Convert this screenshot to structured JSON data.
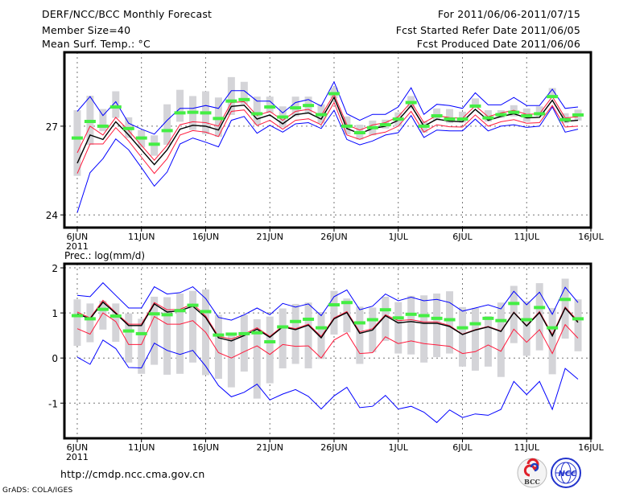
{
  "header": {
    "title": "DERF/NCC/BCC Monthly Forecast",
    "member_size": "Member Size=40",
    "variable": "Mean Surf. Temp.: °C",
    "period": "For 2011/06/06-2011/07/15",
    "start_date": "Fcst Started Refer Date 2011/06/05",
    "produced_date": "Fcst Produced Date 2011/06/06"
  },
  "footer": {
    "url": "http://cmdp.ncc.cma.gov.cn",
    "credit": "GrADS: COLA/IGES",
    "logo_left": "BCC",
    "logo_right": "NCC"
  },
  "colors": {
    "mean": "#000000",
    "spread": "#ff1a3c",
    "extreme": "#0000ff",
    "marker": "#44ee44",
    "box": "#d4d4d8",
    "grid": "#777777"
  },
  "chart_data": [
    {
      "type": "line",
      "title": "Mean Surf. Temp.: °C",
      "ylabel": "°C",
      "ylim": [
        23.57,
        29.5
      ],
      "xlim": [
        -1,
        40
      ],
      "yticks": [
        24,
        27
      ],
      "ytick_labels": [
        "24",
        "27"
      ],
      "xticks": [
        0,
        5,
        10,
        15,
        20,
        25,
        30,
        35,
        40
      ],
      "xtick_labels": [
        "6JUN",
        "11JUN",
        "16JUN",
        "21JUN",
        "26JUN",
        "1JUL",
        "6JUL",
        "11JUL",
        "16JUL"
      ],
      "xyear_label": "2011",
      "grid": true,
      "x": [
        0,
        1,
        2,
        3,
        4,
        5,
        6,
        7,
        8,
        9,
        10,
        11,
        12,
        13,
        14,
        15,
        16,
        17,
        18,
        19,
        20,
        21,
        22,
        23,
        24,
        25,
        26,
        27,
        28,
        29,
        30,
        31,
        32,
        33,
        34,
        35,
        36,
        37,
        38,
        39
      ],
      "box_high": [
        27.54,
        28.03,
        27.58,
        28.18,
        27.3,
        26.87,
        26.69,
        27.74,
        28.23,
        28.02,
        28.18,
        27.97,
        28.66,
        28.5,
        28.0,
        28.0,
        27.67,
        28.0,
        28.0,
        27.74,
        28.31,
        27.33,
        27.05,
        27.19,
        27.22,
        27.47,
        28.02,
        27.17,
        27.6,
        27.58,
        27.49,
        27.94,
        27.54,
        27.54,
        27.71,
        27.6,
        27.67,
        28.29,
        27.44,
        27.56
      ],
      "box_low": [
        25.32,
        26.37,
        26.83,
        27.28,
        26.6,
        26.28,
        26.0,
        26.37,
        27.15,
        26.87,
        26.73,
        26.64,
        27.38,
        27.74,
        27.05,
        27.44,
        26.96,
        27.33,
        27.42,
        27.1,
        27.95,
        26.72,
        26.55,
        26.69,
        26.92,
        26.99,
        27.6,
        26.78,
        27.19,
        27.1,
        27.12,
        27.62,
        27.15,
        27.28,
        27.33,
        27.15,
        27.33,
        27.97,
        27.1,
        27.19
      ],
      "series": [
        {
          "name": "max",
          "color": "#0000ff",
          "values": [
            27.5,
            28.0,
            27.36,
            27.83,
            27.1,
            26.9,
            26.73,
            27.2,
            27.6,
            27.6,
            27.7,
            27.6,
            28.2,
            28.2,
            27.85,
            27.85,
            27.45,
            27.8,
            27.9,
            27.68,
            28.5,
            27.42,
            27.2,
            27.4,
            27.4,
            27.65,
            28.3,
            27.4,
            27.74,
            27.7,
            27.6,
            28.13,
            27.72,
            27.72,
            27.97,
            27.7,
            27.7,
            28.25,
            27.6,
            27.65
          ]
        },
        {
          "name": "min",
          "color": "#0000ff",
          "values": [
            24.08,
            25.43,
            25.9,
            26.57,
            26.2,
            25.6,
            24.97,
            25.45,
            26.4,
            26.6,
            26.46,
            26.3,
            27.2,
            27.33,
            26.76,
            27.03,
            26.8,
            27.08,
            27.12,
            26.92,
            27.54,
            26.55,
            26.37,
            26.5,
            26.7,
            26.78,
            27.36,
            26.62,
            26.87,
            26.84,
            26.84,
            27.24,
            26.84,
            27.0,
            27.05,
            26.96,
            27.0,
            27.65,
            26.8,
            26.9
          ]
        },
        {
          "name": "upper",
          "color": "#ff1a3c",
          "values": [
            26.1,
            27.0,
            26.7,
            27.3,
            26.85,
            26.35,
            25.85,
            26.35,
            27.05,
            27.15,
            27.12,
            27.0,
            27.8,
            27.83,
            27.36,
            27.5,
            27.2,
            27.5,
            27.57,
            27.36,
            28.08,
            27.05,
            26.87,
            27.04,
            27.12,
            27.32,
            27.82,
            27.12,
            27.36,
            27.29,
            27.27,
            27.69,
            27.32,
            27.45,
            27.54,
            27.4,
            27.42,
            28.0,
            27.28,
            27.32
          ]
        },
        {
          "name": "lower",
          "color": "#ff1a3c",
          "values": [
            25.4,
            26.4,
            26.4,
            26.95,
            26.5,
            25.95,
            25.4,
            25.9,
            26.7,
            26.85,
            26.8,
            26.65,
            27.5,
            27.55,
            27.02,
            27.2,
            26.9,
            27.2,
            27.25,
            27.05,
            27.8,
            26.7,
            26.55,
            26.72,
            26.8,
            27.0,
            27.5,
            26.8,
            27.05,
            26.98,
            26.97,
            27.38,
            27.0,
            27.15,
            27.22,
            27.1,
            27.12,
            27.7,
            26.97,
            27.0
          ]
        },
        {
          "name": "mean",
          "color": "#000000",
          "values": [
            25.75,
            26.7,
            26.55,
            27.15,
            26.7,
            26.2,
            25.7,
            26.2,
            26.9,
            27.03,
            27.0,
            26.87,
            27.67,
            27.71,
            27.24,
            27.38,
            27.08,
            27.39,
            27.45,
            27.24,
            27.97,
            26.92,
            26.75,
            26.92,
            27.0,
            27.2,
            27.7,
            27.0,
            27.24,
            27.17,
            27.15,
            27.57,
            27.2,
            27.33,
            27.42,
            27.28,
            27.3,
            27.88,
            27.16,
            27.2
          ]
        }
      ],
      "markers": [
        26.6,
        27.16,
        27.0,
        27.65,
        26.92,
        26.6,
        26.39,
        26.85,
        27.45,
        27.47,
        27.45,
        27.26,
        27.85,
        27.9,
        27.42,
        27.65,
        27.31,
        27.62,
        27.7,
        27.39,
        28.1,
        27.0,
        26.78,
        26.95,
        27.05,
        27.24,
        27.8,
        27.0,
        27.35,
        27.24,
        27.24,
        27.68,
        27.28,
        27.39,
        27.47,
        27.35,
        27.42,
        28.0,
        27.22,
        27.38
      ]
    },
    {
      "type": "line",
      "title": "Prec.: log(mm/d)",
      "ylabel": "log(mm/d)",
      "ylim": [
        -1.78,
        2.09
      ],
      "xlim": [
        -1,
        40
      ],
      "yticks": [
        -1,
        0,
        1,
        2
      ],
      "ytick_labels": [
        "-1",
        "0",
        "1",
        "2"
      ],
      "xticks": [
        0,
        5,
        10,
        15,
        20,
        25,
        30,
        35,
        40
      ],
      "xtick_labels": [
        "6JUN",
        "11JUN",
        "16JUN",
        "21JUN",
        "26JUN",
        "1JUL",
        "6JUL",
        "11JUL",
        "16JUL"
      ],
      "xyear_label": "2011",
      "grid": true,
      "x": [
        0,
        1,
        2,
        3,
        4,
        5,
        6,
        7,
        8,
        9,
        10,
        11,
        12,
        13,
        14,
        15,
        16,
        17,
        18,
        19,
        20,
        21,
        22,
        23,
        24,
        25,
        26,
        27,
        28,
        29,
        30,
        31,
        32,
        33,
        34,
        35,
        36,
        37,
        38,
        39
      ],
      "box_high": [
        1.3,
        1.21,
        1.27,
        1.21,
        0.99,
        0.87,
        1.36,
        1.35,
        1.43,
        1.49,
        1.52,
        0.96,
        0.51,
        0.96,
        0.86,
        0.92,
        1.1,
        1.2,
        1.23,
        1.02,
        1.49,
        1.32,
        1.14,
        1.12,
        1.36,
        1.24,
        1.38,
        1.39,
        1.43,
        1.48,
        1.13,
        1.11,
        0.93,
        1.23,
        1.6,
        1.26,
        1.66,
        1.11,
        1.76,
        1.3
      ],
      "box_low": [
        0.27,
        0.35,
        0.63,
        0.36,
        -0.1,
        -0.35,
        -0.15,
        -0.37,
        -0.35,
        -0.1,
        -0.38,
        -0.46,
        -0.65,
        -0.3,
        -0.9,
        -0.56,
        -0.23,
        -0.13,
        -0.23,
        -0.02,
        0.52,
        0.57,
        -0.13,
        0.13,
        0.38,
        0.1,
        0.08,
        -0.1,
        0.02,
        0.1,
        -0.19,
        -0.28,
        -0.19,
        -0.42,
        0.33,
        0.05,
        0.17,
        -0.36,
        0.43,
        0.15
      ],
      "series": [
        {
          "name": "max",
          "color": "#0000ff",
          "values": [
            1.39,
            1.36,
            1.67,
            1.39,
            1.11,
            1.11,
            1.58,
            1.42,
            1.45,
            1.58,
            1.32,
            0.9,
            0.84,
            0.96,
            1.11,
            0.96,
            1.21,
            1.13,
            1.2,
            0.94,
            1.36,
            1.51,
            1.07,
            1.15,
            1.42,
            1.27,
            1.35,
            1.27,
            1.3,
            1.23,
            1.04,
            1.11,
            1.18,
            1.09,
            1.48,
            1.18,
            1.46,
            0.97,
            1.57,
            1.23
          ]
        },
        {
          "name": "min",
          "color": "#0000ff",
          "values": [
            0.02,
            -0.14,
            0.4,
            0.21,
            -0.21,
            -0.22,
            0.33,
            0.17,
            0.08,
            0.17,
            -0.18,
            -0.61,
            -0.86,
            -0.76,
            -0.58,
            -0.93,
            -0.8,
            -0.7,
            -0.85,
            -1.13,
            -0.84,
            -0.65,
            -1.1,
            -1.07,
            -0.83,
            -1.13,
            -1.07,
            -1.2,
            -1.43,
            -1.15,
            -1.32,
            -1.24,
            -1.27,
            -1.14,
            -0.52,
            -0.81,
            -0.52,
            -1.14,
            -0.23,
            -0.47
          ]
        },
        {
          "name": "upper",
          "color": "#ff1a3c",
          "values": [
            1.02,
            0.89,
            1.28,
            1.01,
            0.75,
            0.75,
            1.23,
            1.07,
            1.08,
            1.2,
            0.93,
            0.48,
            0.42,
            0.53,
            0.67,
            0.48,
            0.71,
            0.65,
            0.75,
            0.48,
            0.89,
            1.03,
            0.58,
            0.65,
            0.96,
            0.83,
            0.85,
            0.8,
            0.8,
            0.72,
            0.53,
            0.63,
            0.7,
            0.6,
            1.02,
            0.72,
            1.03,
            0.52,
            1.13,
            0.82
          ]
        },
        {
          "name": "lower",
          "color": "#ff1a3c",
          "values": [
            0.65,
            0.53,
            1.0,
            0.81,
            0.3,
            0.3,
            0.92,
            0.75,
            0.75,
            0.83,
            0.57,
            0.12,
            0.0,
            0.14,
            0.27,
            0.08,
            0.3,
            0.26,
            0.27,
            0.0,
            0.4,
            0.56,
            0.1,
            0.12,
            0.47,
            0.32,
            0.38,
            0.32,
            0.29,
            0.26,
            0.1,
            0.14,
            0.29,
            0.15,
            0.64,
            0.35,
            0.63,
            0.1,
            0.74,
            0.44
          ]
        },
        {
          "name": "mean",
          "color": "#000000",
          "values": [
            0.98,
            0.87,
            1.24,
            0.99,
            0.72,
            0.72,
            1.2,
            1.02,
            1.05,
            1.15,
            0.9,
            0.45,
            0.38,
            0.5,
            0.64,
            0.46,
            0.69,
            0.63,
            0.73,
            0.45,
            0.87,
            1.01,
            0.55,
            0.62,
            0.94,
            0.78,
            0.81,
            0.77,
            0.77,
            0.7,
            0.52,
            0.62,
            0.69,
            0.59,
            1.01,
            0.71,
            1.01,
            0.49,
            1.11,
            0.79
          ]
        }
      ],
      "markers": [
        0.94,
        0.87,
        1.08,
        0.93,
        0.6,
        0.54,
        0.98,
        0.96,
        1.05,
        1.17,
        1.03,
        0.51,
        0.53,
        0.54,
        0.56,
        0.36,
        0.69,
        0.81,
        0.86,
        0.67,
        1.18,
        1.23,
        0.78,
        0.85,
        1.07,
        0.89,
        0.97,
        0.94,
        0.88,
        0.85,
        0.67,
        0.76,
        0.88,
        0.83,
        1.21,
        0.85,
        1.12,
        0.67,
        1.3,
        0.87
      ]
    }
  ]
}
